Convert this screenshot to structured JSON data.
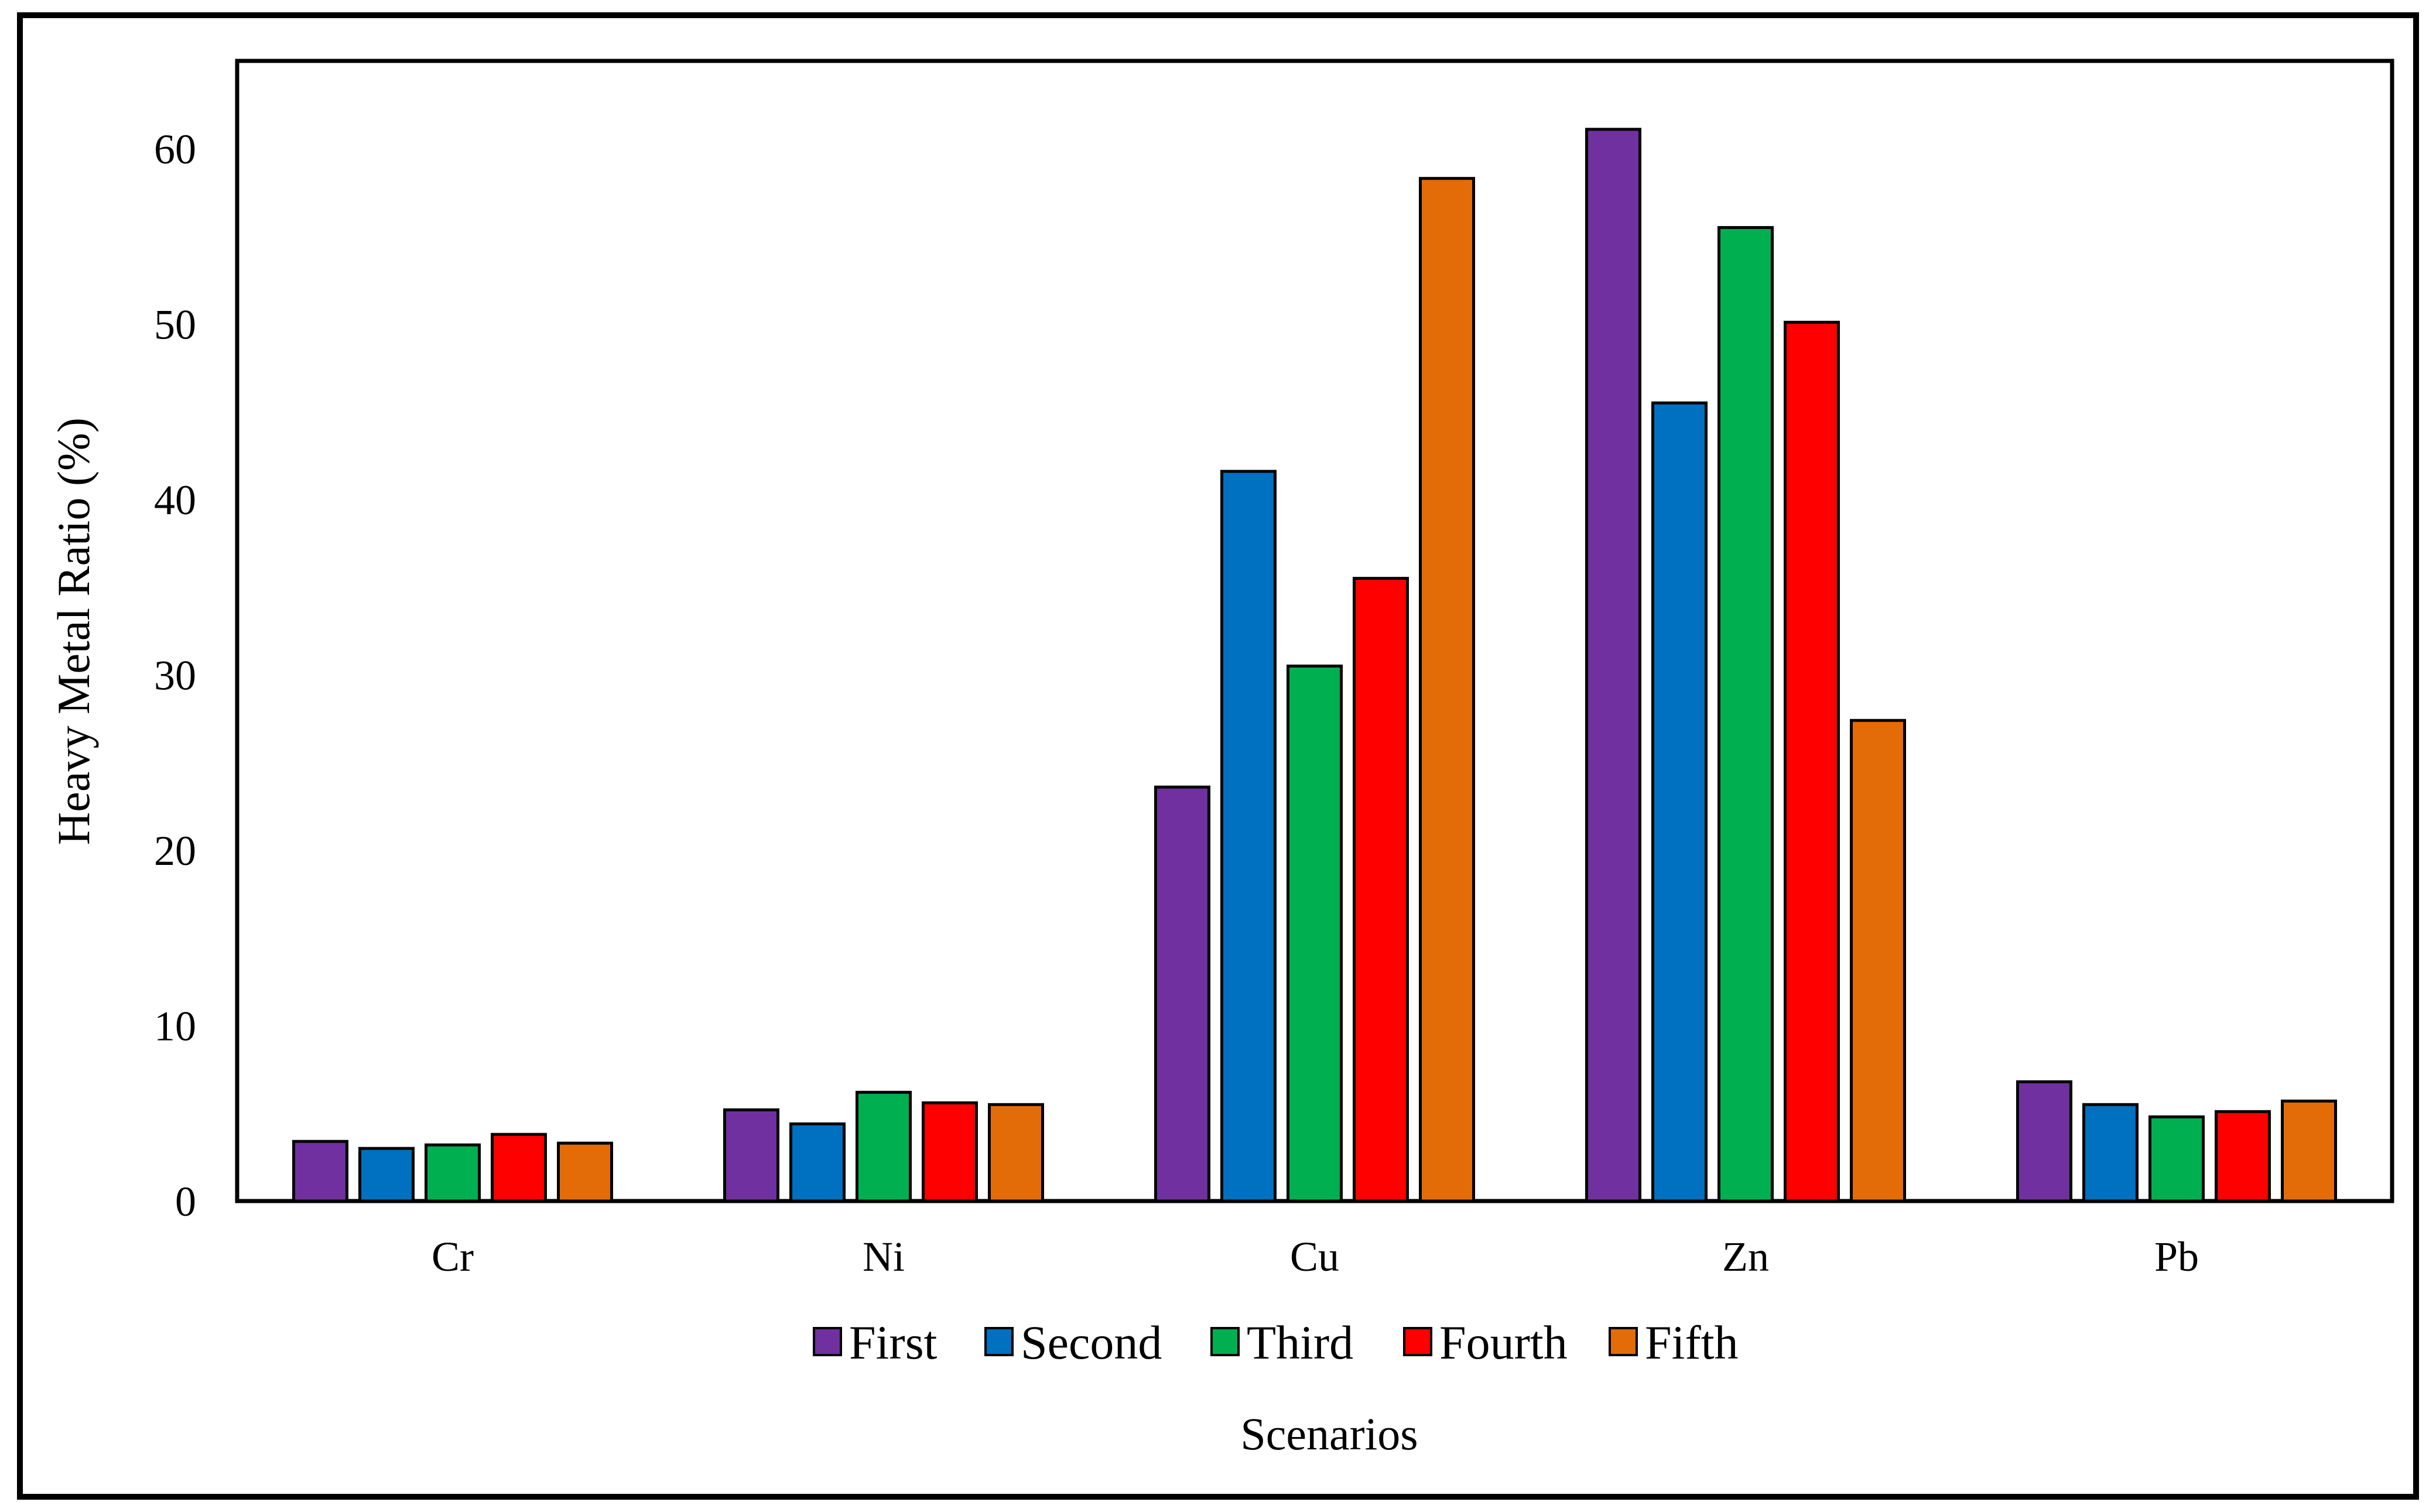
{
  "chart_data": {
    "type": "bar",
    "categories": [
      "Cr",
      "Ni",
      "Cu",
      "Zn",
      "Pb"
    ],
    "series": [
      {
        "name": "First",
        "color": "#7030A0",
        "values": [
          3.4,
          5.2,
          23.6,
          61.1,
          6.8
        ]
      },
      {
        "name": "Second",
        "color": "#0070C0",
        "values": [
          3.0,
          4.4,
          41.6,
          45.5,
          5.5
        ]
      },
      {
        "name": "Third",
        "color": "#00B050",
        "values": [
          3.2,
          6.2,
          30.5,
          55.5,
          4.8
        ]
      },
      {
        "name": "Fourth",
        "color": "#FF0000",
        "values": [
          3.8,
          5.6,
          35.5,
          50.1,
          5.1
        ]
      },
      {
        "name": "Fifth",
        "color": "#E36C09",
        "values": [
          3.3,
          5.5,
          58.3,
          27.4,
          5.7
        ]
      }
    ],
    "xlabel": "Scenarios",
    "ylabel": "Heavy Metal Ratio (%)",
    "ylim": [
      0,
      65
    ],
    "yticks": [
      0,
      10,
      20,
      30,
      40,
      50,
      60
    ],
    "grid": false,
    "legend": "bottom"
  }
}
